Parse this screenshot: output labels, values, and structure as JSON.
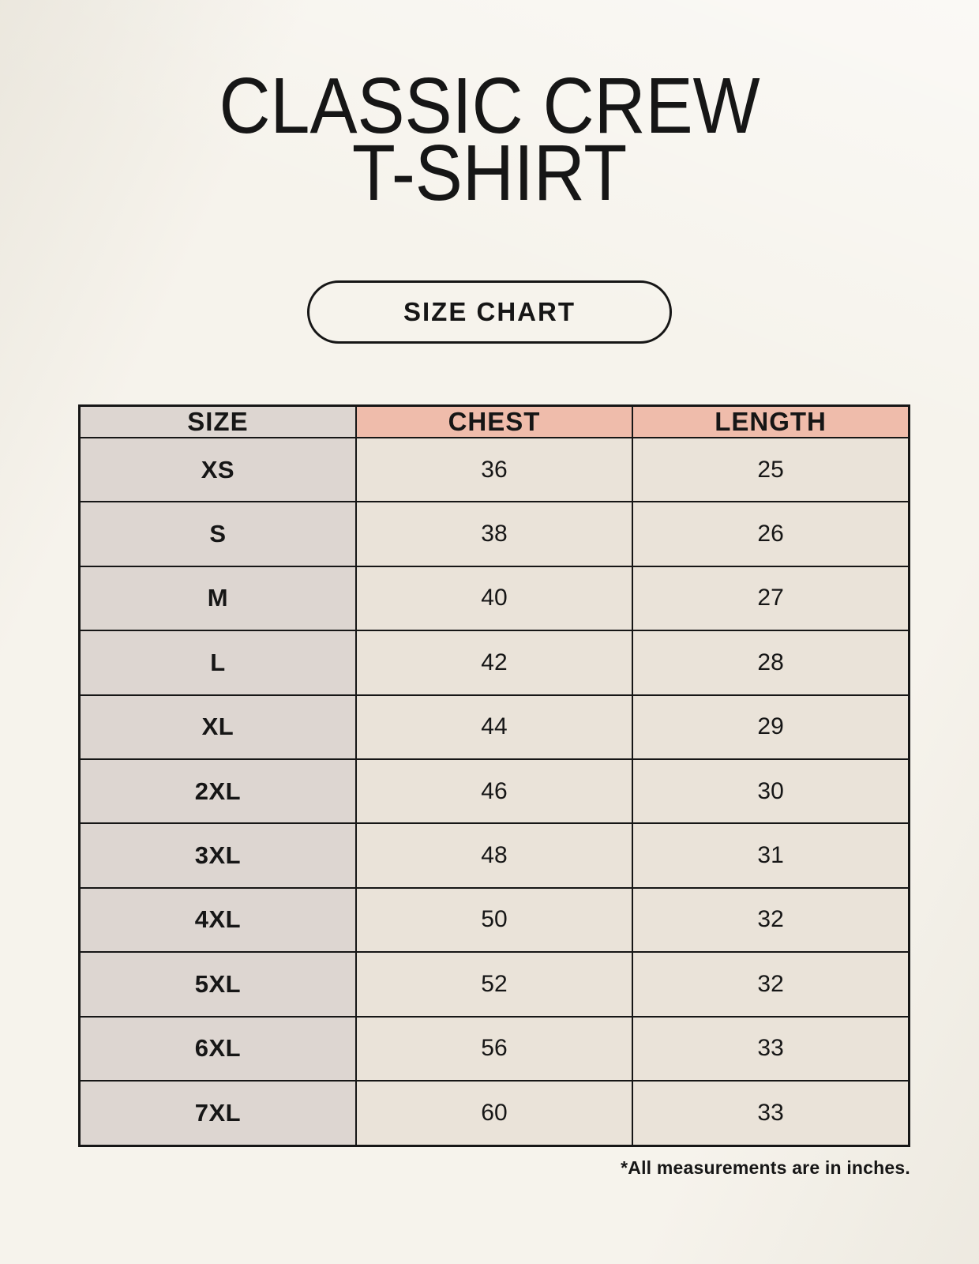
{
  "header": {
    "title_line1": "CLASSIC CREW",
    "title_line2": "T-SHIRT",
    "badge_label": "SIZE CHART"
  },
  "table": {
    "columns": [
      "SIZE",
      "CHEST",
      "LENGTH"
    ],
    "rows": [
      {
        "size": "XS",
        "chest": "36",
        "length": "25"
      },
      {
        "size": "S",
        "chest": "38",
        "length": "26"
      },
      {
        "size": "M",
        "chest": "40",
        "length": "27"
      },
      {
        "size": "L",
        "chest": "42",
        "length": "28"
      },
      {
        "size": "XL",
        "chest": "44",
        "length": "29"
      },
      {
        "size": "2XL",
        "chest": "46",
        "length": "30"
      },
      {
        "size": "3XL",
        "chest": "48",
        "length": "31"
      },
      {
        "size": "4XL",
        "chest": "50",
        "length": "32"
      },
      {
        "size": "5XL",
        "chest": "52",
        "length": "32"
      },
      {
        "size": "6XL",
        "chest": "56",
        "length": "33"
      },
      {
        "size": "7XL",
        "chest": "60",
        "length": "33"
      }
    ],
    "footnote": "*All measurements are in inches."
  },
  "colors": {
    "background": "#f6f3ec",
    "header_accent": "#efbcab",
    "size_col_bg": "#ddd6d1",
    "data_cell_bg": "#eae3d9",
    "border": "#161616",
    "text": "#161616"
  }
}
